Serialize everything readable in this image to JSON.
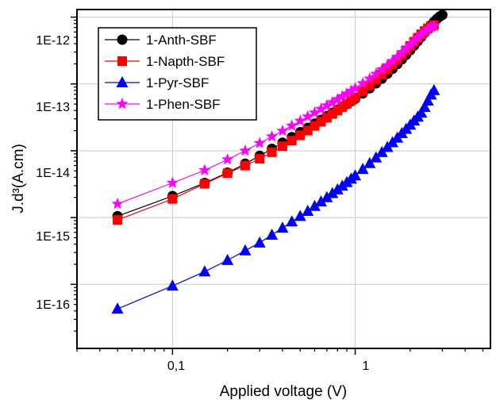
{
  "chart_data": {
    "type": "scatter",
    "title": "",
    "xlabel": "Applied voltage (V)",
    "ylabel": "J.d³(A.cm)",
    "xscale": "log",
    "yscale": "log",
    "xlim": [
      0.03,
      5.5
    ],
    "ylim": [
      1.1e-17,
      1.3e-12
    ],
    "grid": true,
    "legend_position": "top-left",
    "x_tick_labels": [
      "0,1",
      "1"
    ],
    "y_tick_labels": [
      "1E-16",
      "1E-15",
      "1E-14",
      "1E-13",
      "1E-12"
    ],
    "series": [
      {
        "name": "1-Anth-SBF",
        "marker": "circle",
        "color": "#000000",
        "x": [
          0.05,
          0.1,
          0.15,
          0.2,
          0.25,
          0.3,
          0.35,
          0.4,
          0.45,
          0.5,
          0.55,
          0.6,
          0.65,
          0.7,
          0.75,
          0.8,
          0.85,
          0.9,
          0.95,
          1.0,
          1.1,
          1.2,
          1.3,
          1.4,
          1.5,
          1.6,
          1.7,
          1.8,
          1.9,
          2.0,
          2.1,
          2.2,
          2.3,
          2.4,
          2.5,
          2.6,
          2.7,
          2.8,
          2.9,
          3.0
        ],
        "y": [
          1.05e-15,
          2.1e-15,
          3.3e-15,
          4.7e-15,
          6.4e-15,
          8.4e-15,
          1.07e-14,
          1.32e-14,
          1.6e-14,
          1.9e-14,
          2.2e-14,
          2.55e-14,
          2.9e-14,
          3.3e-14,
          3.7e-14,
          4.1e-14,
          4.55e-14,
          5e-14,
          5.5e-14,
          6e-14,
          7.2e-14,
          8.6e-14,
          1.02e-13,
          1.2e-13,
          1.42e-13,
          1.68e-13,
          1.98e-13,
          2.33e-13,
          2.73e-13,
          3.2e-13,
          3.74e-13,
          4.36e-13,
          5.06e-13,
          5.85e-13,
          6.7e-13,
          7.6e-13,
          8.5e-13,
          9.4e-13,
          1.02e-12,
          1.08e-12
        ]
      },
      {
        "name": "1-Napth-SBF",
        "marker": "square",
        "color": "#ff0000",
        "x": [
          0.05,
          0.1,
          0.15,
          0.2,
          0.25,
          0.3,
          0.35,
          0.4,
          0.45,
          0.5,
          0.55,
          0.6,
          0.65,
          0.7,
          0.75,
          0.8,
          0.85,
          0.9,
          0.95,
          1.0,
          1.1,
          1.2,
          1.3,
          1.4,
          1.5,
          1.6,
          1.7,
          1.8,
          1.9,
          2.0,
          2.1,
          2.2,
          2.3,
          2.4,
          2.5,
          2.6,
          2.7
        ],
        "y": [
          9.2e-16,
          1.9e-15,
          3.2e-15,
          4.6e-15,
          6e-15,
          7.6e-15,
          9.5e-15,
          1.17e-14,
          1.42e-14,
          1.7e-14,
          2e-14,
          2.35e-14,
          2.72e-14,
          3.12e-14,
          3.55e-14,
          4e-14,
          4.5e-14,
          5.05e-14,
          5.65e-14,
          6.3e-14,
          7.8e-14,
          9.5e-14,
          1.15e-13,
          1.38e-13,
          1.65e-13,
          1.96e-13,
          2.32e-13,
          2.72e-13,
          3.18e-13,
          3.7e-13,
          4.28e-13,
          4.9e-13,
          5.55e-13,
          6.2e-13,
          6.8e-13,
          7.3e-13,
          7.6e-13
        ]
      },
      {
        "name": "1-Pyr-SBF",
        "marker": "triangle",
        "color": "#0000ff",
        "x": [
          0.05,
          0.1,
          0.15,
          0.2,
          0.25,
          0.3,
          0.35,
          0.4,
          0.45,
          0.5,
          0.55,
          0.6,
          0.65,
          0.7,
          0.75,
          0.8,
          0.85,
          0.9,
          0.95,
          1.0,
          1.1,
          1.2,
          1.3,
          1.4,
          1.5,
          1.6,
          1.7,
          1.8,
          1.9,
          2.0,
          2.1,
          2.2,
          2.3,
          2.4,
          2.5,
          2.6,
          2.7
        ],
        "y": [
          4.3e-17,
          9.5e-17,
          1.55e-16,
          2.3e-16,
          3.2e-16,
          4.2e-16,
          5.5e-16,
          7e-16,
          8.7e-16,
          1.05e-15,
          1.25e-15,
          1.48e-15,
          1.73e-15,
          2e-15,
          2.3e-15,
          2.62e-15,
          2.98e-15,
          3.37e-15,
          3.8e-15,
          4.25e-15,
          5.3e-15,
          6.5e-15,
          7.9e-15,
          9.5e-15,
          1.13e-14,
          1.33e-14,
          1.56e-14,
          1.82e-14,
          2.11e-14,
          2.44e-14,
          2.81e-14,
          3.22e-14,
          3.69e-14,
          4.5e-14,
          5.6e-14,
          6.9e-14,
          8e-14
        ]
      },
      {
        "name": "1-Phen-SBF",
        "marker": "star",
        "color": "#ff00ff",
        "x": [
          0.05,
          0.1,
          0.15,
          0.2,
          0.25,
          0.3,
          0.35,
          0.4,
          0.45,
          0.5,
          0.55,
          0.6,
          0.65,
          0.7,
          0.75,
          0.8,
          0.85,
          0.9,
          0.95,
          1.0,
          1.1,
          1.2,
          1.3,
          1.4,
          1.5,
          1.6,
          1.7,
          1.8,
          1.9,
          2.0,
          2.1,
          2.2,
          2.3,
          2.4,
          2.5,
          2.6,
          2.7
        ],
        "y": [
          1.6e-15,
          3.3e-15,
          5.1e-15,
          7.4e-15,
          1e-14,
          1.3e-14,
          1.63e-14,
          1.98e-14,
          2.37e-14,
          2.8e-14,
          3.25e-14,
          3.72e-14,
          4.22e-14,
          4.75e-14,
          5.3e-14,
          5.88e-14,
          6.5e-14,
          7.15e-14,
          7.83e-14,
          8.6e-14,
          1.02e-13,
          1.2e-13,
          1.41e-13,
          1.64e-13,
          1.9e-13,
          2.2e-13,
          2.54e-13,
          2.92e-13,
          3.35e-13,
          3.83e-13,
          4.36e-13,
          4.93e-13,
          5.5e-13,
          6.05e-13,
          6.6e-13,
          7.05e-13,
          7.4e-13
        ]
      }
    ]
  }
}
